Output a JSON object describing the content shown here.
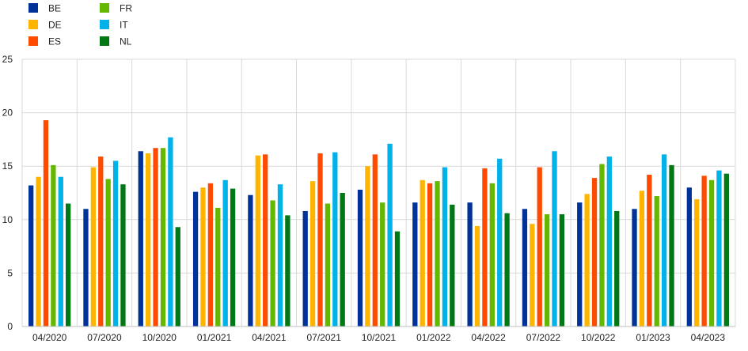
{
  "chart_data": {
    "type": "bar",
    "title": "",
    "xlabel": "",
    "ylabel": "",
    "ylim": [
      0,
      25
    ],
    "yticks": [
      0,
      5,
      10,
      15,
      20,
      25
    ],
    "grid": true,
    "legend_position": "top-left",
    "categories": [
      "04/2020",
      "07/2020",
      "10/2020",
      "01/2021",
      "04/2021",
      "07/2021",
      "10/2021",
      "01/2022",
      "04/2022",
      "07/2022",
      "10/2022",
      "01/2023",
      "04/2023"
    ],
    "series": [
      {
        "name": "BE",
        "color": "#003299",
        "values": [
          13.2,
          11.0,
          16.4,
          12.6,
          12.3,
          10.8,
          12.8,
          11.6,
          11.6,
          11.0,
          11.6,
          11.0,
          13.0
        ]
      },
      {
        "name": "DE",
        "color": "#ffb400",
        "values": [
          14.0,
          14.9,
          16.2,
          13.0,
          16.0,
          13.6,
          15.0,
          13.7,
          9.4,
          9.6,
          12.4,
          12.7,
          11.9
        ]
      },
      {
        "name": "ES",
        "color": "#ff4b00",
        "values": [
          19.3,
          15.9,
          16.7,
          13.4,
          16.1,
          16.2,
          16.1,
          13.4,
          14.8,
          14.9,
          13.9,
          14.2,
          14.1
        ]
      },
      {
        "name": "FR",
        "color": "#65b800",
        "values": [
          15.1,
          13.8,
          16.7,
          11.1,
          11.8,
          11.5,
          11.6,
          13.6,
          13.4,
          10.5,
          15.2,
          12.2,
          13.7
        ]
      },
      {
        "name": "IT",
        "color": "#00b1ea",
        "values": [
          14.0,
          15.5,
          17.7,
          13.7,
          13.3,
          16.3,
          17.1,
          14.9,
          15.7,
          16.4,
          15.9,
          16.1,
          14.6
        ]
      },
      {
        "name": "NL",
        "color": "#007816",
        "values": [
          11.5,
          13.3,
          9.3,
          12.9,
          10.4,
          12.5,
          8.9,
          11.4,
          10.6,
          10.5,
          10.8,
          15.1,
          14.3
        ]
      }
    ]
  }
}
